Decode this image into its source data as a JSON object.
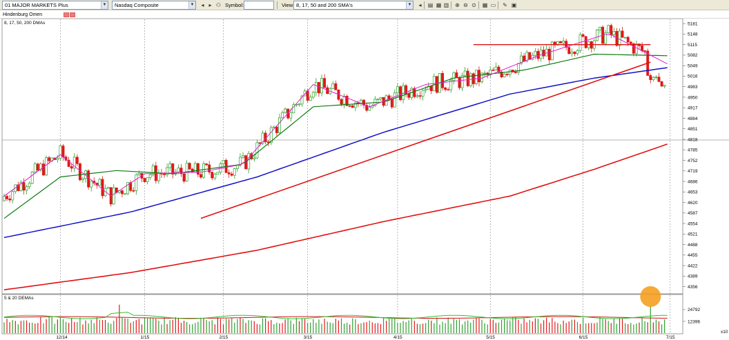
{
  "toolbar": {
    "watchlist": "01 MAJOR MARKETS Plus",
    "symbol_name": "Nasdaq Composite",
    "symbol_label": "Symbol:",
    "symbol_value": "",
    "view_label": "View:",
    "view_value": "8, 17, 50 and 200 SMA's"
  },
  "indicator_bar": {
    "name": "Hindenburg Omen"
  },
  "price_pane": {
    "title": "8, 17, 50, 200 DMAs",
    "y_ticks": [
      "5181",
      "5148",
      "5115",
      "5082",
      "5049",
      "5016",
      "4983",
      "4950",
      "4917",
      "4884",
      "4851",
      "4818",
      "4785",
      "4752",
      "4719",
      "4686",
      "4653",
      "4620",
      "4587",
      "4554",
      "4521",
      "4488",
      "4455",
      "4422",
      "4389",
      "4356"
    ]
  },
  "volume_pane": {
    "title": "5 & 20 DEMAs",
    "y_ticks": [
      "24792",
      "12396"
    ],
    "multiplier": "x10"
  },
  "x_axis": {
    "labels": [
      "12/14",
      "1/15",
      "2/15",
      "3/15",
      "4/15",
      "5/15",
      "6/15",
      "7/15"
    ]
  },
  "colors": {
    "up_candle": "#2f9e2f",
    "down_candle": "#e01818",
    "sma8": "#e020d0",
    "sma17": "#107a10",
    "sma50": "#1010c8",
    "sma200": "#e01010",
    "trendline": "#e01010",
    "highlight_circle": "#f5a020"
  },
  "chart_data": {
    "type": "line",
    "x_start": "2014-12-01",
    "x_end": "2015-07-01",
    "series": [
      {
        "name": "8 DMA"
      },
      {
        "name": "17 DMA"
      },
      {
        "name": "50 DMA"
      },
      {
        "name": "200 DMA"
      }
    ],
    "sma200": [
      [
        0,
        4346
      ],
      [
        45,
        4400
      ],
      [
        90,
        4470
      ],
      [
        135,
        4560
      ],
      [
        180,
        4640
      ],
      [
        210,
        4724
      ],
      [
        237,
        4806
      ]
    ],
    "sma50": [
      [
        0,
        4510
      ],
      [
        45,
        4590
      ],
      [
        90,
        4700
      ],
      [
        135,
        4840
      ],
      [
        180,
        4960
      ],
      [
        210,
        5010
      ],
      [
        237,
        5044
      ]
    ],
    "sma17": [
      [
        0,
        4570
      ],
      [
        20,
        4700
      ],
      [
        40,
        4720
      ],
      [
        60,
        4710
      ],
      [
        85,
        4740
      ],
      [
        110,
        4920
      ],
      [
        135,
        4935
      ],
      [
        160,
        5010
      ],
      [
        185,
        5035
      ],
      [
        210,
        5085
      ],
      [
        237,
        5080
      ]
    ],
    "sma8": [
      [
        0,
        4640
      ],
      [
        20,
        4770
      ],
      [
        38,
        4640
      ],
      [
        50,
        4710
      ],
      [
        70,
        4715
      ],
      [
        85,
        4740
      ],
      [
        110,
        4990
      ],
      [
        130,
        4920
      ],
      [
        150,
        4990
      ],
      [
        170,
        5010
      ],
      [
        190,
        5080
      ],
      [
        215,
        5150
      ],
      [
        237,
        5050
      ]
    ],
    "trend_support": {
      "from": [
        70,
        4570
      ],
      "to": [
        230,
        5060
      ]
    },
    "trend_resistance": {
      "from": [
        167,
        5115
      ],
      "to": [
        230,
        5115
      ]
    },
    "ylim": [
      4340,
      5190
    ],
    "xlim": [
      0,
      240
    ],
    "volume_ylim": [
      0,
      32000
    ]
  }
}
